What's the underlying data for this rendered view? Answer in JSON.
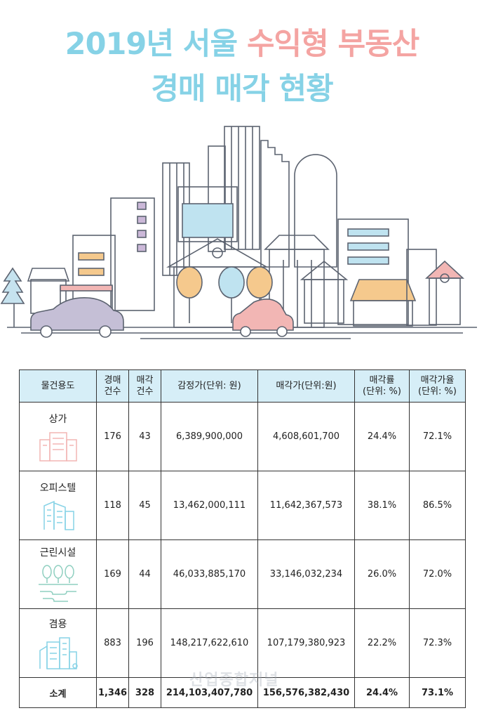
{
  "title": {
    "line1_part1": "2019년 서울",
    "line1_part2": "수익형 부동산",
    "line2": "경매 매각 현황"
  },
  "colors": {
    "title_blue": "#86d2e6",
    "title_pink": "#f4a4a2",
    "header_bg": "#d6eef7"
  },
  "table": {
    "headers": [
      "물건용도",
      "경매 건수",
      "매각 건수",
      "감정가(단위: 원)",
      "매각가(단위:원)",
      "매각률 (단위: %)",
      "매각가율 (단위: %)"
    ],
    "header_lines": {
      "c0": "물건용도",
      "c1a": "경매",
      "c1b": "건수",
      "c2a": "매각",
      "c2b": "건수",
      "c3": "감정가(단위: 원)",
      "c4": "매각가(단위:원)",
      "c5a": "매각률",
      "c5b": "(단위: %)",
      "c6a": "매각가율",
      "c6b": "(단위: %)"
    },
    "rows": [
      {
        "category": "상가",
        "icon": "store-building-icon",
        "auctions": "176",
        "sold": "43",
        "appraisal": "6,389,900,000",
        "sale_price": "4,608,601,700",
        "sale_rate": "24.4%",
        "price_rate": "72.1%"
      },
      {
        "category": "오피스텔",
        "icon": "officetel-building-icon",
        "auctions": "118",
        "sold": "45",
        "appraisal": "13,462,000,111",
        "sale_price": "11,642,367,573",
        "sale_rate": "38.1%",
        "price_rate": "86.5%"
      },
      {
        "category": "근린시설",
        "icon": "neighborhood-facility-icon",
        "auctions": "169",
        "sold": "44",
        "appraisal": "46,033,885,170",
        "sale_price": "33,146,032,234",
        "sale_rate": "26.0%",
        "price_rate": "72.0%"
      },
      {
        "category": "겸용",
        "icon": "mixed-use-building-icon",
        "auctions": "883",
        "sold": "196",
        "appraisal": "148,217,622,610",
        "sale_price": "107,179,380,923",
        "sale_rate": "22.2%",
        "price_rate": "72.3%"
      }
    ],
    "total": {
      "label": "소계",
      "auctions": "1,346",
      "sold": "328",
      "appraisal": "214,103,407,780",
      "sale_price": "156,576,382,430",
      "sale_rate": "24.4%",
      "price_rate": "73.1%"
    }
  },
  "watermark": "산업종합저널"
}
